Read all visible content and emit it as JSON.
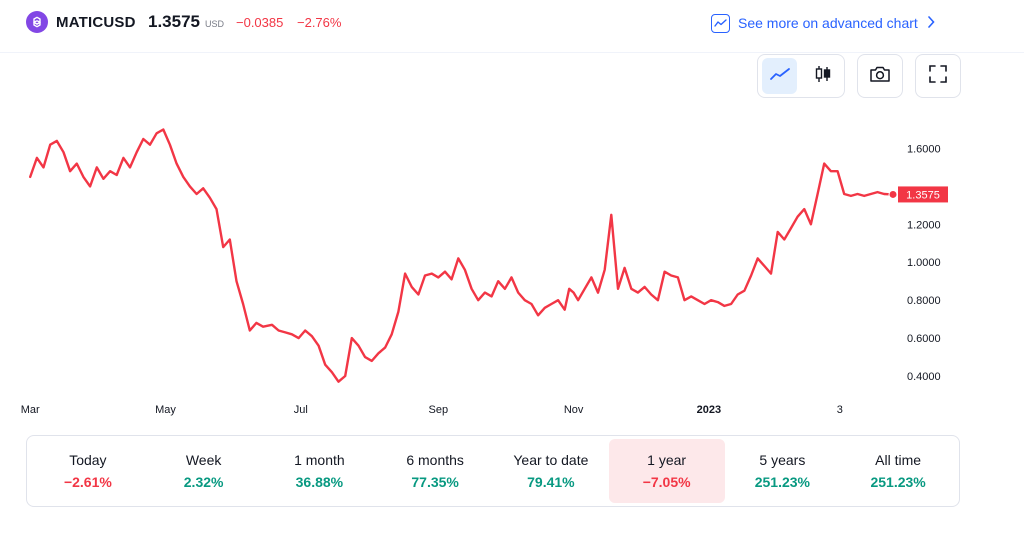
{
  "header": {
    "symbol": "MATICUSD",
    "price": "1.3575",
    "currency": "USD",
    "change": "−0.0385",
    "change_pct": "−2.76%",
    "advanced_link": "See more on advanced chart",
    "logo_icon": "polygon-logo-icon",
    "advanced_icon": "chart-line-icon",
    "chevron_icon": "chevron-right-icon"
  },
  "toolbar": {
    "line_icon": "line-chart-icon",
    "candle_icon": "candlestick-icon",
    "camera_icon": "camera-icon",
    "fullscreen_icon": "fullscreen-icon"
  },
  "colors": {
    "line": "#f23645",
    "negative": "#f23645",
    "positive": "#089981",
    "accent": "#2962ff",
    "brand": "#8247e5"
  },
  "chart_data": {
    "type": "line",
    "series": [
      {
        "x": [
          "2022-03-01",
          "2022-03-04",
          "2022-03-07",
          "2022-03-10",
          "2022-03-13",
          "2022-03-16",
          "2022-03-19",
          "2022-03-22",
          "2022-03-25",
          "2022-03-28",
          "2022-03-31",
          "2022-04-03",
          "2022-04-06",
          "2022-04-09",
          "2022-04-12",
          "2022-04-15",
          "2022-04-18",
          "2022-04-21",
          "2022-04-24",
          "2022-04-27",
          "2022-04-30",
          "2022-05-03",
          "2022-05-06",
          "2022-05-09",
          "2022-05-12",
          "2022-05-15",
          "2022-05-18",
          "2022-05-21",
          "2022-05-24",
          "2022-05-27",
          "2022-05-30",
          "2022-06-02",
          "2022-06-05",
          "2022-06-08",
          "2022-06-11",
          "2022-06-14",
          "2022-06-18",
          "2022-06-21",
          "2022-06-24",
          "2022-06-27",
          "2022-06-30",
          "2022-07-03",
          "2022-07-06",
          "2022-07-09",
          "2022-07-12",
          "2022-07-15",
          "2022-07-18",
          "2022-07-21",
          "2022-07-24",
          "2022-07-27",
          "2022-07-30",
          "2022-08-02",
          "2022-08-05",
          "2022-08-08",
          "2022-08-11",
          "2022-08-14",
          "2022-08-17",
          "2022-08-20",
          "2022-08-23",
          "2022-08-26",
          "2022-08-29",
          "2022-09-01",
          "2022-09-04",
          "2022-09-07",
          "2022-09-10",
          "2022-09-13",
          "2022-09-16",
          "2022-09-19",
          "2022-09-22",
          "2022-09-25",
          "2022-09-28",
          "2022-10-01",
          "2022-10-04",
          "2022-10-07",
          "2022-10-10",
          "2022-10-13",
          "2022-10-16",
          "2022-10-19",
          "2022-10-22",
          "2022-10-25",
          "2022-10-28",
          "2022-10-30",
          "2022-11-01",
          "2022-11-03",
          "2022-11-06",
          "2022-11-09",
          "2022-11-12",
          "2022-11-15",
          "2022-11-18",
          "2022-11-21",
          "2022-11-24",
          "2022-11-27",
          "2022-11-30",
          "2022-12-03",
          "2022-12-06",
          "2022-12-09",
          "2022-12-12",
          "2022-12-15",
          "2022-12-18",
          "2022-12-21",
          "2022-12-24",
          "2022-12-27",
          "2022-12-30",
          "2023-01-02",
          "2023-01-05",
          "2023-01-08",
          "2023-01-11",
          "2023-01-14",
          "2023-01-17",
          "2023-01-20",
          "2023-01-23",
          "2023-01-26",
          "2023-01-29",
          "2023-02-01",
          "2023-02-04",
          "2023-02-07",
          "2023-02-10",
          "2023-02-13",
          "2023-02-16",
          "2023-02-19",
          "2023-02-22",
          "2023-02-25",
          "2023-02-28",
          "2023-03-03",
          "2023-03-06",
          "2023-03-09",
          "2023-03-12",
          "2023-03-15",
          "2023-03-18",
          "2023-03-21",
          "2023-03-25"
        ],
        "y": [
          1.45,
          1.55,
          1.5,
          1.62,
          1.64,
          1.58,
          1.48,
          1.52,
          1.45,
          1.4,
          1.5,
          1.44,
          1.48,
          1.46,
          1.55,
          1.5,
          1.58,
          1.65,
          1.62,
          1.68,
          1.7,
          1.62,
          1.52,
          1.45,
          1.4,
          1.36,
          1.39,
          1.34,
          1.28,
          1.08,
          1.12,
          0.9,
          0.78,
          0.64,
          0.68,
          0.66,
          0.67,
          0.64,
          0.63,
          0.62,
          0.6,
          0.64,
          0.61,
          0.56,
          0.46,
          0.42,
          0.37,
          0.4,
          0.6,
          0.56,
          0.5,
          0.48,
          0.52,
          0.55,
          0.62,
          0.74,
          0.94,
          0.87,
          0.83,
          0.93,
          0.94,
          0.92,
          0.95,
          0.91,
          1.02,
          0.96,
          0.86,
          0.8,
          0.84,
          0.82,
          0.9,
          0.86,
          0.92,
          0.84,
          0.8,
          0.78,
          0.72,
          0.76,
          0.78,
          0.8,
          0.75,
          0.86,
          0.84,
          0.8,
          0.86,
          0.92,
          0.84,
          0.96,
          1.25,
          0.86,
          0.97,
          0.86,
          0.84,
          0.87,
          0.83,
          0.8,
          0.95,
          0.93,
          0.92,
          0.8,
          0.82,
          0.8,
          0.78,
          0.8,
          0.79,
          0.77,
          0.78,
          0.83,
          0.85,
          0.93,
          1.02,
          0.98,
          0.94,
          1.16,
          1.12,
          1.18,
          1.24,
          1.28,
          1.2,
          1.36,
          1.52,
          1.48,
          1.48,
          1.36,
          1.35,
          1.36,
          1.35,
          1.36,
          1.37,
          1.36,
          1.3575
        ]
      }
    ],
    "y_ticks": [
      "1.6000",
      "1.2000",
      "1.0000",
      "0.8000",
      "0.6000",
      "0.4000"
    ],
    "y_tick_values": [
      1.6,
      1.2,
      1.0,
      0.8,
      0.6,
      0.4
    ],
    "x_ticks": [
      {
        "label": "Mar",
        "date": "2022-03-01"
      },
      {
        "label": "May",
        "date": "2022-05-01"
      },
      {
        "label": "Jul",
        "date": "2022-07-01"
      },
      {
        "label": "Sep",
        "date": "2022-09-01"
      },
      {
        "label": "Nov",
        "date": "2022-11-01"
      },
      {
        "label": "2023",
        "date": "2023-01-01"
      },
      {
        "label": "3",
        "date": "2023-03-01"
      }
    ],
    "ylim": [
      0.3,
      1.75
    ],
    "xlim": [
      "2022-02-28",
      "2023-03-25"
    ],
    "last_value_label": "1.3575",
    "grid": false
  },
  "periods": [
    {
      "label": "Today",
      "value": "−2.61%",
      "trend": "neg",
      "selected": false
    },
    {
      "label": "Week",
      "value": "2.32%",
      "trend": "pos",
      "selected": false
    },
    {
      "label": "1 month",
      "value": "36.88%",
      "trend": "pos",
      "selected": false
    },
    {
      "label": "6 months",
      "value": "77.35%",
      "trend": "pos",
      "selected": false
    },
    {
      "label": "Year to date",
      "value": "79.41%",
      "trend": "pos",
      "selected": false
    },
    {
      "label": "1 year",
      "value": "−7.05%",
      "trend": "neg",
      "selected": true
    },
    {
      "label": "5 years",
      "value": "251.23%",
      "trend": "pos",
      "selected": false
    },
    {
      "label": "All time",
      "value": "251.23%",
      "trend": "pos",
      "selected": false
    }
  ]
}
